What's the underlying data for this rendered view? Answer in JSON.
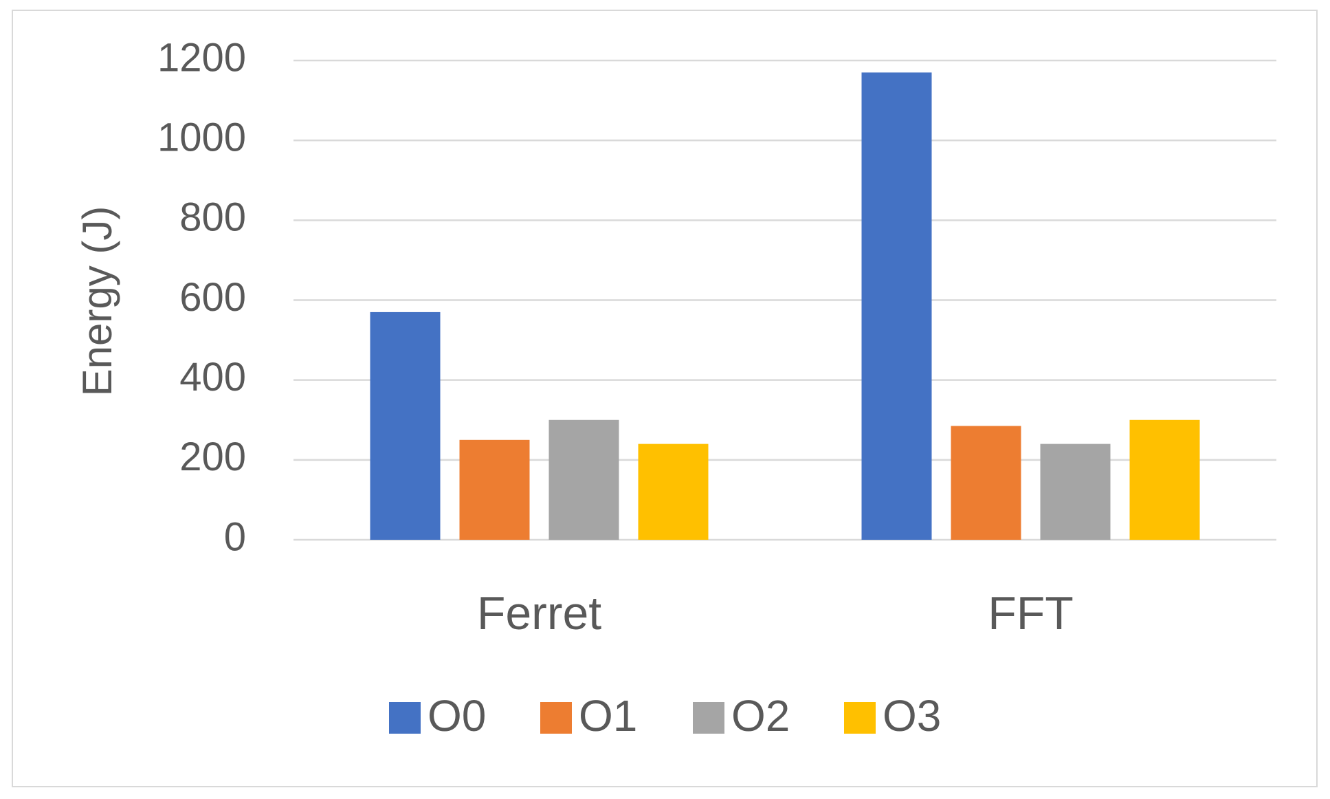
{
  "chart_data": {
    "type": "bar",
    "y_label": "Energy (J)",
    "categories": [
      "Ferret",
      "FFT"
    ],
    "series": [
      {
        "name": "O0",
        "color": "#4472c4",
        "values": [
          570,
          1170
        ]
      },
      {
        "name": "O1",
        "color": "#ed7d31",
        "values": [
          250,
          285
        ]
      },
      {
        "name": "O2",
        "color": "#a5a5a5",
        "values": [
          300,
          240
        ]
      },
      {
        "name": "O3",
        "color": "#ffc000",
        "values": [
          240,
          300
        ]
      }
    ],
    "ylim": [
      0,
      1200
    ],
    "yticks": [
      0,
      200,
      400,
      600,
      800,
      1000,
      1200
    ],
    "grid": true,
    "legend": "bottom"
  }
}
